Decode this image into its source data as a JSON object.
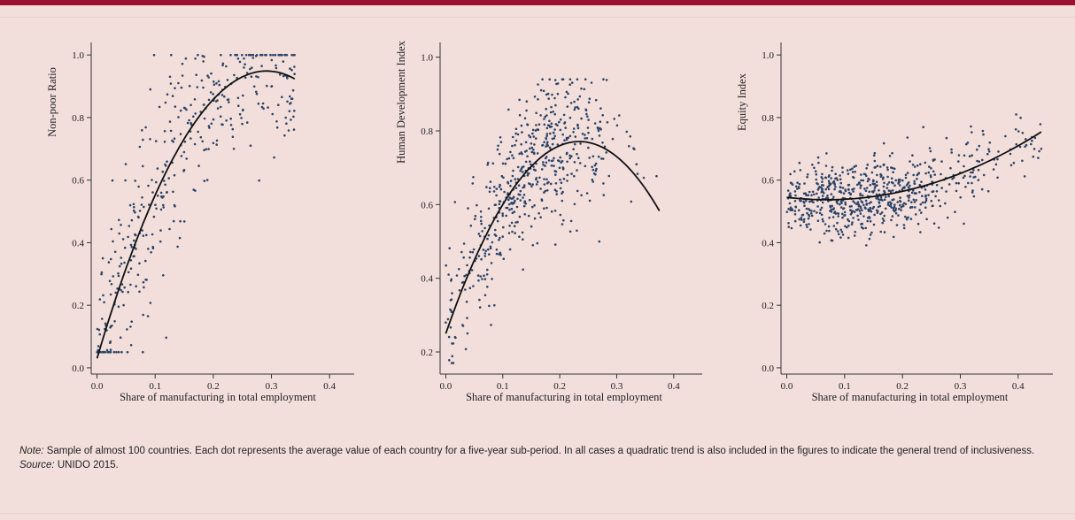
{
  "chart_data": [
    {
      "type": "scatter",
      "xlabel": "Share of manufacturing in total employment",
      "ylabel": "Non-poor Ratio",
      "xlim": [
        -0.01,
        0.45
      ],
      "ylim": [
        -0.02,
        1.04
      ],
      "x_ticks": [
        "0.0",
        "0.1",
        "0.2",
        "0.3",
        "0.4"
      ],
      "y_ticks": [
        "0.0",
        "0.2",
        "0.4",
        "0.6",
        "0.8",
        "1.0"
      ],
      "trend": {
        "type": "quadratic",
        "x_range": [
          0.0,
          0.34
        ],
        "coefficients": [
          0.03,
          6.3,
          -10.8
        ]
      },
      "scatter_summary": {
        "n": 420,
        "x_range": [
          0.0,
          0.34
        ],
        "y_range": [
          0.05,
          1.0
        ],
        "dispersion": 0.18
      },
      "grid": false
    },
    {
      "type": "scatter",
      "xlabel": "Share of manufacturing in total employment",
      "ylabel": "Human Development Index",
      "xlim": [
        -0.01,
        0.45
      ],
      "ylim": [
        0.14,
        1.04
      ],
      "x_ticks": [
        "0.0",
        "0.1",
        "0.2",
        "0.3",
        "0.4"
      ],
      "y_ticks": [
        "0.2",
        "0.4",
        "0.6",
        "0.8",
        "1.0"
      ],
      "trend": {
        "type": "quadratic",
        "x_range": [
          0.0,
          0.375
        ],
        "coefficients": [
          0.25,
          4.45,
          -9.5
        ]
      },
      "scatter_summary": {
        "n": 560,
        "x_range": [
          0.0,
          0.37
        ],
        "y_range": [
          0.17,
          0.94
        ],
        "dispersion": 0.1
      },
      "grid": false
    },
    {
      "type": "scatter",
      "xlabel": "Share of manufacturing in total employment",
      "ylabel": "Equity Index",
      "xlim": [
        -0.01,
        0.46
      ],
      "ylim": [
        -0.02,
        1.04
      ],
      "x_ticks": [
        "0.0",
        "0.1",
        "0.2",
        "0.3",
        "0.4"
      ],
      "y_ticks": [
        "0.0",
        "0.2",
        "0.4",
        "0.6",
        "0.8",
        "1.0"
      ],
      "trend": {
        "type": "quadratic",
        "x_range": [
          0.0,
          0.44
        ],
        "coefficients": [
          0.545,
          -0.22,
          1.58
        ]
      },
      "scatter_summary": {
        "n": 700,
        "x_range": [
          0.0,
          0.44
        ],
        "y_range": [
          0.31,
          0.81
        ],
        "dispersion": 0.06
      },
      "grid": false
    }
  ],
  "colors": {
    "background": "#f2dfdc",
    "dots": "#2e4466",
    "trend": "#111111",
    "accent": "#9b1030"
  },
  "note": {
    "label": "Note:",
    "text": " Sample of almost 100 countries. Each dot represents the average value of each country for a five-year sub-period. In all cases a quadratic trend is also included in the figures to indicate the general trend of inclusiveness."
  },
  "source": {
    "label": "Source:",
    "text": " UNIDO 2015."
  }
}
